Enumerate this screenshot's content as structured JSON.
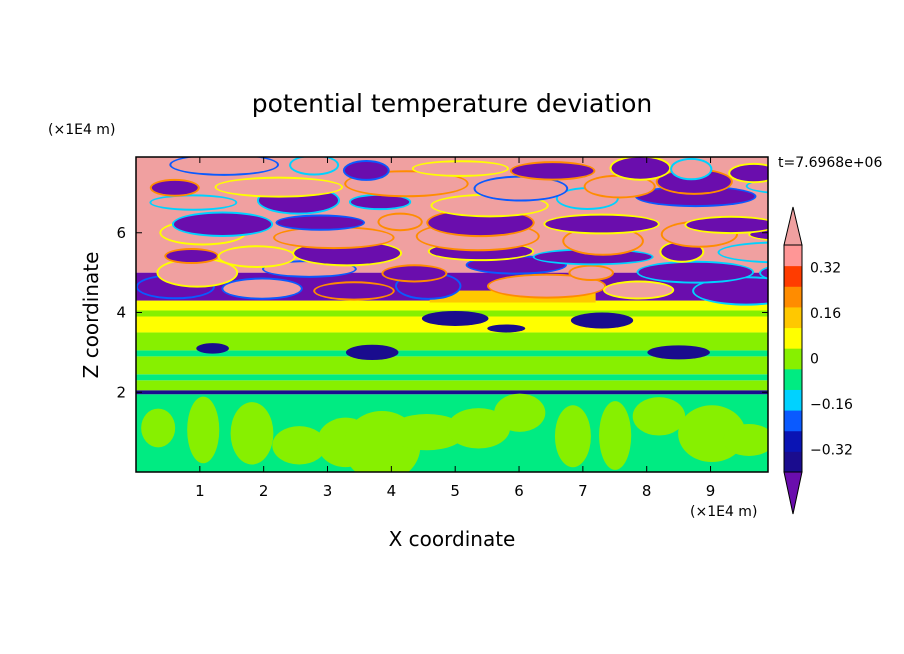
{
  "chart_data": {
    "type": "heatmap",
    "title": "potential temperature deviation",
    "time_label": "t=7.6968e+06",
    "xlabel": "X coordinate",
    "ylabel": "Z coordinate",
    "x_unit": "(×1E4 m)",
    "y_unit": "(×1E4 m)",
    "xlim": [
      0,
      9.9
    ],
    "ylim": [
      0,
      7.9
    ],
    "x_ticks": [
      1,
      2,
      3,
      4,
      5,
      6,
      7,
      8,
      9
    ],
    "y_ticks": [
      2,
      4,
      6
    ],
    "colorbar": {
      "levels": [
        -0.48,
        -0.4,
        -0.32,
        -0.24,
        -0.16,
        -0.08,
        0,
        0.08,
        0.16,
        0.24,
        0.32,
        0.4,
        0.48
      ],
      "tick_labels": [
        "0.32",
        "0.16",
        "0",
        "−0.16",
        "−0.32"
      ],
      "tick_values": [
        0.32,
        0.16,
        0,
        -0.16,
        -0.32
      ],
      "colors": [
        "#6a0dad",
        "#1a0c8e",
        "#0a14b4",
        "#0a5aff",
        "#00d2ff",
        "#00eb82",
        "#87f000",
        "#ffff00",
        "#ffc800",
        "#ff8c00",
        "#ff3c00",
        "#ff9696",
        "#f0a0a0"
      ],
      "extend": "both"
    }
  }
}
